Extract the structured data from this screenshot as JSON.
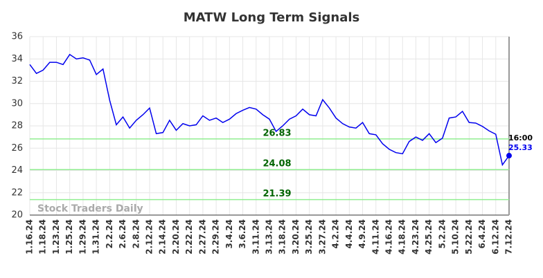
{
  "chart_data": {
    "type": "line",
    "title": "MATW Long Term Signals",
    "categories": [
      "1.16.24",
      null,
      "1.18.24",
      null,
      "1.23.24",
      null,
      "1.25.24",
      null,
      "1.29.24",
      null,
      "1.31.24",
      null,
      "2.2.24",
      null,
      "2.6.24",
      null,
      "2.8.24",
      null,
      "2.12.24",
      null,
      "2.14.24",
      null,
      "2.20.24",
      null,
      "2.22.24",
      null,
      "2.27.24",
      null,
      "2.29.24",
      null,
      "3.4.24",
      null,
      "3.6.24",
      null,
      "3.11.24",
      null,
      "3.13.24",
      null,
      "3.18.24",
      null,
      "3.20.24",
      null,
      "3.25.24",
      null,
      "3.27.24",
      null,
      "4.2.24",
      null,
      "4.4.24",
      null,
      "4.9.24",
      null,
      "4.11.24",
      null,
      "4.16.24",
      null,
      "4.18.24",
      null,
      "4.23.24",
      null,
      "4.25.24",
      null,
      "5.2.24",
      null,
      "5.10.24",
      null,
      "5.22.24",
      null,
      "6.4.24",
      null,
      "6.12.24",
      null,
      "7.12.24"
    ],
    "values": [
      33.5,
      32.7,
      33.0,
      33.7,
      33.7,
      33.5,
      34.4,
      34.0,
      34.1,
      33.9,
      32.6,
      33.1,
      30.3,
      28.1,
      28.8,
      27.8,
      28.5,
      29.0,
      29.6,
      27.3,
      27.4,
      28.5,
      27.6,
      28.2,
      28.0,
      28.1,
      28.9,
      28.5,
      28.7,
      28.3,
      28.6,
      29.1,
      29.4,
      29.65,
      29.5,
      29.0,
      28.6,
      27.5,
      28.0,
      28.6,
      28.9,
      29.5,
      29.0,
      28.9,
      30.35,
      29.6,
      28.7,
      28.2,
      27.9,
      27.8,
      28.3,
      27.3,
      27.2,
      26.4,
      25.9,
      25.6,
      25.5,
      26.6,
      27.0,
      26.7,
      27.3,
      26.5,
      26.9,
      28.7,
      28.8,
      29.3,
      28.3,
      28.25,
      27.95,
      27.55,
      27.25,
      24.5,
      25.33
    ],
    "color": "#0000ee",
    "ylim": [
      20,
      36
    ],
    "yticks": [
      20,
      22,
      24,
      26,
      28,
      30,
      32,
      34,
      36
    ],
    "grid": true,
    "hlines": [
      26.83,
      24.08,
      21.39
    ],
    "hline_color": "#90ee90",
    "hline_label_color": "#006400",
    "last_time": "16:00",
    "watermark": "Stock Traders Daily"
  }
}
